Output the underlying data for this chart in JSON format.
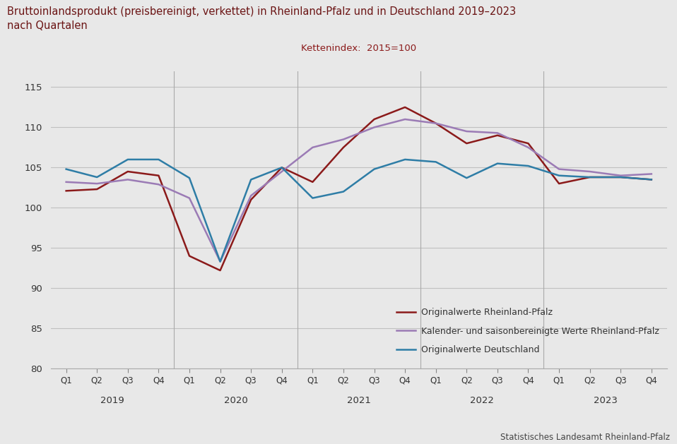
{
  "title": "Bruttoinlandsprodukt (preisbereinigt, verkettet) in Rheinland-Pfalz und in Deutschland 2019–2023\nnach Quartalen",
  "subtitle": "Kettenindex:  2015=100",
  "source": "Statistisches Landesamt Rheinland-Pfalz",
  "title_color": "#6b1414",
  "subtitle_color": "#8b1a1a",
  "background_color": "#e8e8e8",
  "plot_bg_color": "#e8e8e8",
  "ylim": [
    80,
    117
  ],
  "yticks": [
    80,
    85,
    90,
    95,
    100,
    105,
    110,
    115
  ],
  "x_labels": [
    "Q1",
    "Q2",
    "Q3",
    "Q4",
    "Q1",
    "Q2",
    "Q3",
    "Q4",
    "Q1",
    "Q2",
    "Q3",
    "Q4",
    "Q1",
    "Q2",
    "Q3",
    "Q4",
    "Q1",
    "Q2",
    "Q3",
    "Q4"
  ],
  "year_labels": [
    "2019",
    "2020",
    "2021",
    "2022",
    "2023"
  ],
  "series_originalwerte_rlp": [
    102.1,
    102.3,
    104.5,
    104.0,
    94.0,
    92.2,
    101.0,
    105.0,
    103.2,
    107.5,
    111.0,
    112.5,
    110.5,
    108.0,
    109.0,
    108.0,
    103.0,
    103.8,
    103.8,
    103.5
  ],
  "series_kalender_rlp": [
    103.2,
    103.0,
    103.5,
    102.9,
    101.2,
    93.3,
    101.5,
    104.5,
    107.5,
    108.5,
    110.0,
    111.0,
    110.5,
    109.5,
    109.3,
    107.5,
    104.8,
    104.5,
    104.0,
    104.2
  ],
  "series_originalwerte_de": [
    104.8,
    103.8,
    106.0,
    106.0,
    103.7,
    93.3,
    103.5,
    105.0,
    101.2,
    102.0,
    104.8,
    106.0,
    105.7,
    103.7,
    105.5,
    105.2,
    104.0,
    103.8,
    103.8,
    103.5
  ],
  "color_rlp_orig": "#8b1a1a",
  "color_rlp_kal": "#9b7bb5",
  "color_de_orig": "#2e7da6",
  "linewidth": 1.8,
  "legend_labels": [
    "Originalwerte Rheinland-Pfalz",
    "Kalender- und saisonbereinigte Werte Rheinland-Pfalz",
    "Originalwerte Deutschland"
  ],
  "grid_color": "#c0c0c0",
  "separator_color": "#aaaaaa"
}
